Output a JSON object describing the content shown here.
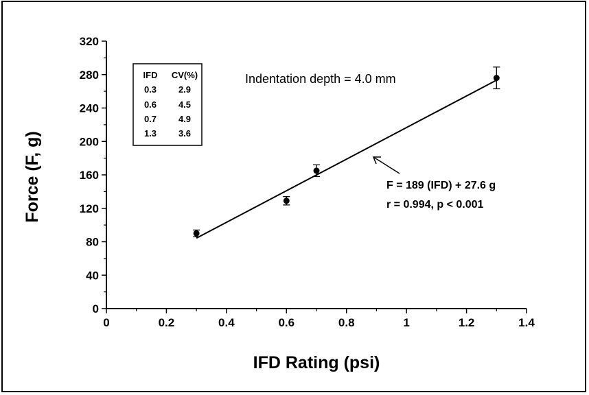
{
  "chart_data": {
    "type": "scatter",
    "xlabel": "IFD Rating (psi)",
    "ylabel": "Force (F, g)",
    "xlim": [
      0,
      1.4
    ],
    "ylim": [
      0,
      320
    ],
    "x_ticks": [
      "0",
      "0.2",
      "0.4",
      "0.6",
      "0.8",
      "1",
      "1.2",
      "1.4"
    ],
    "y_ticks": [
      "0",
      "40",
      "80",
      "120",
      "160",
      "200",
      "240",
      "280",
      "320"
    ],
    "grid": false,
    "series": [
      {
        "points": [
          {
            "x": 0.3,
            "y": 90,
            "err": 4
          },
          {
            "x": 0.6,
            "y": 129,
            "err": 5
          },
          {
            "x": 0.7,
            "y": 165,
            "err": 7
          },
          {
            "x": 1.3,
            "y": 276,
            "err": 13
          }
        ]
      }
    ],
    "fit_line": {
      "slope": 189,
      "intercept": 27.6,
      "x_range": [
        0.3,
        1.3
      ]
    },
    "annotations": {
      "depth": "Indentation depth = 4.0 mm",
      "equation": "F = 189 (IFD) + 27.6 g",
      "stats": "r = 0.994, p < 0.001"
    },
    "cv_table": {
      "headers": [
        "IFD",
        "CV(%)"
      ],
      "rows": [
        [
          "0.3",
          "2.9"
        ],
        [
          "0.6",
          "4.5"
        ],
        [
          "0.7",
          "4.9"
        ],
        [
          "1.3",
          "3.6"
        ]
      ]
    }
  }
}
